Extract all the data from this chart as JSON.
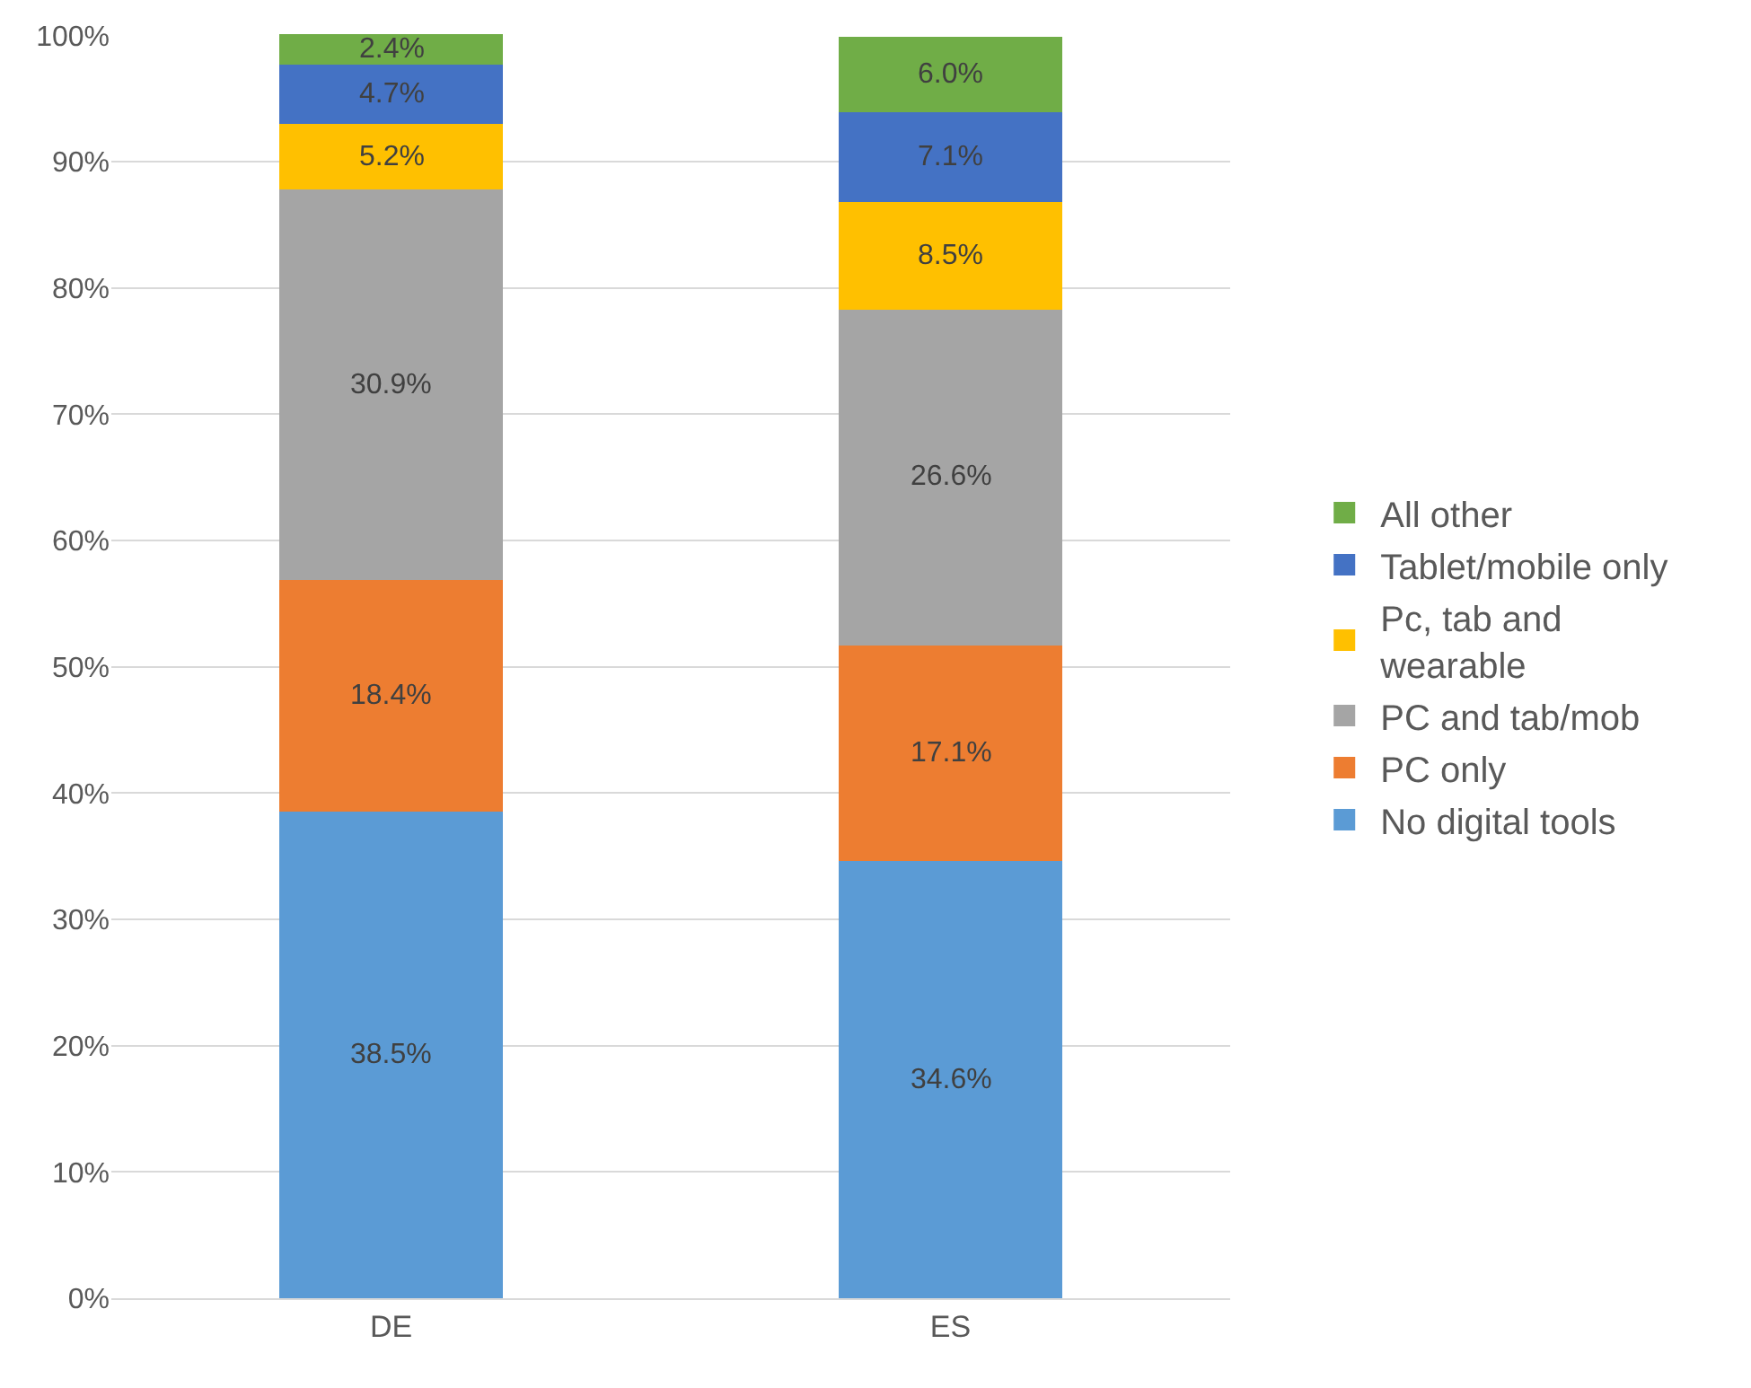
{
  "chart_data": {
    "type": "bar",
    "stacked": true,
    "categories": [
      "DE",
      "ES"
    ],
    "series": [
      {
        "name": "No digital tools",
        "color": "#5b9bd5",
        "values": [
          38.5,
          34.6
        ],
        "value_labels": [
          "38.5%",
          "34.6%"
        ]
      },
      {
        "name": "PC only",
        "color": "#ed7d31",
        "values": [
          18.4,
          17.1
        ],
        "value_labels": [
          "18.4%",
          "17.1%"
        ]
      },
      {
        "name": "PC and tab/mob",
        "color": "#a5a5a5",
        "values": [
          30.9,
          26.6
        ],
        "value_labels": [
          "30.9%",
          "26.6%"
        ]
      },
      {
        "name": "Pc, tab and wearable",
        "color": "#ffc000",
        "values": [
          5.2,
          8.5
        ],
        "value_labels": [
          "5.2%",
          "8.5%"
        ]
      },
      {
        "name": "Tablet/mobile only",
        "color": "#4472c4",
        "values": [
          4.7,
          7.1
        ],
        "value_labels": [
          "4.7%",
          "7.1%"
        ]
      },
      {
        "name": "All other",
        "color": "#70ad47",
        "values": [
          2.4,
          6.0
        ],
        "value_labels": [
          "2.4%",
          "6.0%"
        ]
      }
    ],
    "ylim": [
      0,
      100.1
    ],
    "yticks": [
      {
        "value": 0,
        "label": "0%"
      },
      {
        "value": 10,
        "label": "10%"
      },
      {
        "value": 20,
        "label": "20%"
      },
      {
        "value": 30,
        "label": "30%"
      },
      {
        "value": 40,
        "label": "40%"
      },
      {
        "value": 50,
        "label": "50%"
      },
      {
        "value": 60,
        "label": "60%"
      },
      {
        "value": 70,
        "label": "70%"
      },
      {
        "value": 80,
        "label": "80%"
      },
      {
        "value": 90,
        "label": "90%"
      },
      {
        "value": 100,
        "label": "100%"
      }
    ],
    "grid": "y",
    "legend": "right"
  }
}
